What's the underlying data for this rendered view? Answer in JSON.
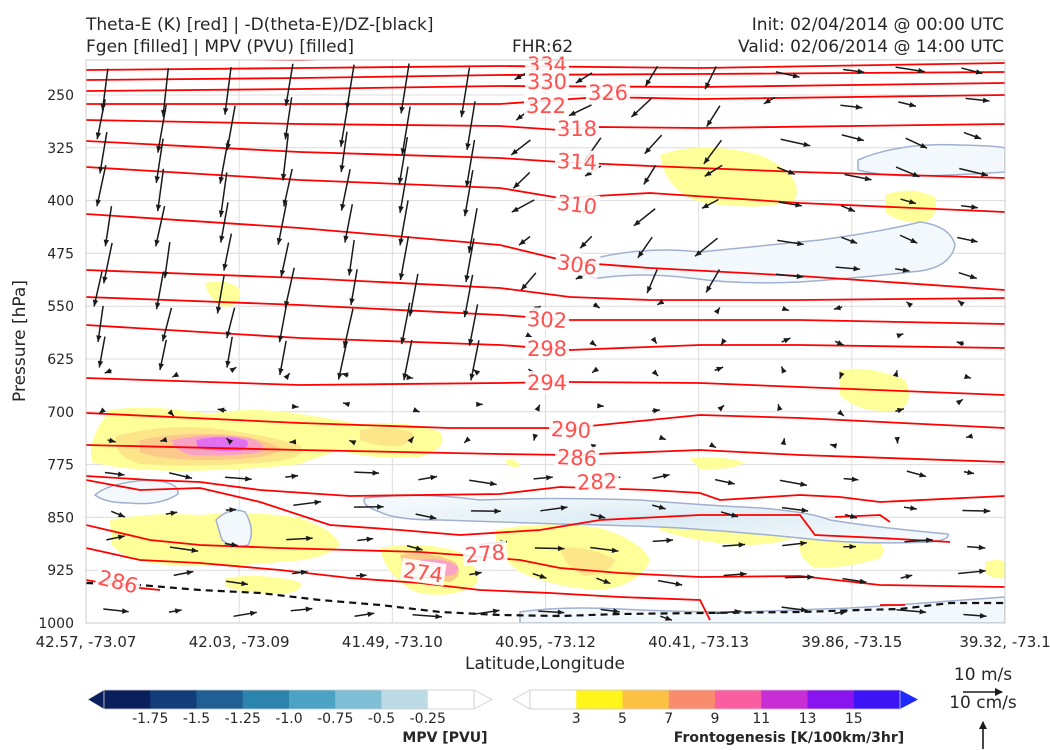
{
  "header": {
    "title_line1": "Theta-E (K) [red] | -D(theta-E)/DZ-[black]",
    "title_line2": "Fgen [filled] | MPV (PVU) [filled]",
    "fhr": "FHR:62",
    "init": "Init: 02/04/2014 @ 00:00 UTC",
    "valid": "Valid: 02/06/2014 @ 14:00 UTC"
  },
  "chart_data": {
    "type": "cross-section",
    "xlabel": "Latitude,Longitude",
    "ylabel": "Pressure [hPa]",
    "x_ticks": [
      "42.57, -73.07",
      "42.03, -73.09",
      "41.49, -73.10",
      "40.95, -73.12",
      "40.41, -73.13",
      "39.86, -73.15",
      "39.32, -73.1"
    ],
    "y_ticks": [
      "250",
      "325",
      "400",
      "475",
      "550",
      "625",
      "700",
      "775",
      "850",
      "925",
      "1000"
    ],
    "y_range_hpa": [
      1000,
      200
    ],
    "grid": true,
    "theta_e_contour_labels": [
      "334",
      "330",
      "326",
      "322",
      "318",
      "314",
      "310",
      "306",
      "302",
      "298",
      "294",
      "290",
      "286",
      "282",
      "278",
      "274",
      "286"
    ],
    "theta_e_color": "#ff0000",
    "label_color": "#ff5050",
    "mpv_color": "#a0b0d0",
    "fgen_color": "#ffff80",
    "reference_vectors": {
      "horizontal": "10 m/s",
      "vertical": "10 cm/s"
    },
    "mpv_colorbar": {
      "label": "MPV [PVU]",
      "ticks": [
        "-1.75",
        "-1.5",
        "-1.25",
        "-1.0",
        "-0.75",
        "-0.5",
        "-0.25"
      ],
      "colors": [
        "#0a1f5c",
        "#123d7a",
        "#1f5f94",
        "#2b84ab",
        "#4aa3c2",
        "#7fbfd6",
        "#bcdbe7",
        "#ffffff"
      ]
    },
    "fgen_colorbar": {
      "label": "Frontogenesis [K/100km/3hr]",
      "ticks": [
        "3",
        "5",
        "7",
        "9",
        "11",
        "13",
        "15"
      ],
      "colors": [
        "#ffffff",
        "#fff51a",
        "#fcc043",
        "#fa8c6e",
        "#fa5da0",
        "#c82dd6",
        "#8a14f0",
        "#3c14f5",
        "#1e28ff"
      ]
    }
  }
}
